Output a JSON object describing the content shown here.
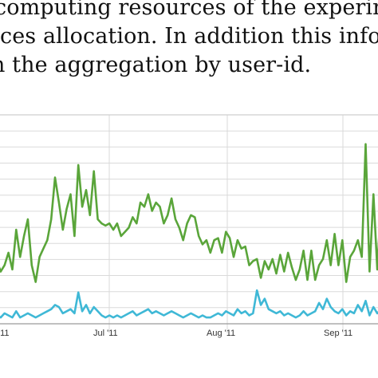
{
  "body_text": {
    "line1": "computing resources of the experim",
    "line2": "rces allocation.  In addition this infor",
    "line3": "n the aggregation by user-id."
  },
  "chart_data": {
    "type": "line",
    "x_tick_labels": [
      "'11",
      "Jul '11",
      "Aug '11",
      "Sep '11"
    ],
    "grid": true,
    "colors": {
      "series_1": "#5aa53a",
      "series_2": "#3fb8d6",
      "grid": "#dadada",
      "frame": "#cfcfcf"
    },
    "ylim": [
      0,
      100
    ],
    "series": [
      {
        "color": "#5aa53a",
        "values": [
          30,
          25,
          28,
          34,
          26,
          45,
          32,
          42,
          50,
          28,
          20,
          32,
          36,
          40,
          50,
          70,
          58,
          45,
          55,
          62,
          42,
          76,
          56,
          64,
          52,
          73,
          50,
          48,
          47,
          48,
          45,
          48,
          42,
          44,
          46,
          51,
          48,
          58,
          56,
          62,
          54,
          58,
          56,
          48,
          52,
          60,
          50,
          46,
          40,
          48,
          52,
          51,
          42,
          38,
          40,
          34,
          40,
          41,
          34,
          44,
          41,
          32,
          40,
          36,
          37,
          28,
          30,
          31,
          22,
          30,
          26,
          31,
          24,
          33,
          25,
          34,
          27,
          21,
          26,
          35,
          21,
          35,
          21,
          28,
          31,
          40,
          28,
          43,
          28,
          40,
          20,
          32,
          35,
          40,
          32,
          86,
          25,
          62,
          26,
          60
        ]
      },
      {
        "color": "#3fb8d6",
        "values": [
          4,
          3,
          5,
          4,
          3,
          6,
          3,
          4,
          5,
          4,
          3,
          4,
          5,
          6,
          7,
          9,
          8,
          5,
          6,
          7,
          5,
          15,
          6,
          9,
          5,
          8,
          6,
          4,
          3,
          4,
          3,
          4,
          3,
          4,
          5,
          6,
          4,
          5,
          6,
          7,
          5,
          6,
          5,
          4,
          5,
          6,
          5,
          4,
          3,
          4,
          5,
          4,
          3,
          4,
          3,
          3,
          4,
          5,
          4,
          6,
          5,
          4,
          7,
          5,
          6,
          4,
          5,
          16,
          9,
          12,
          7,
          6,
          5,
          6,
          4,
          5,
          4,
          3,
          4,
          6,
          4,
          5,
          6,
          10,
          7,
          12,
          8,
          6,
          5,
          7,
          4,
          6,
          5,
          9,
          6,
          11,
          4,
          8,
          5,
          7
        ]
      }
    ]
  }
}
